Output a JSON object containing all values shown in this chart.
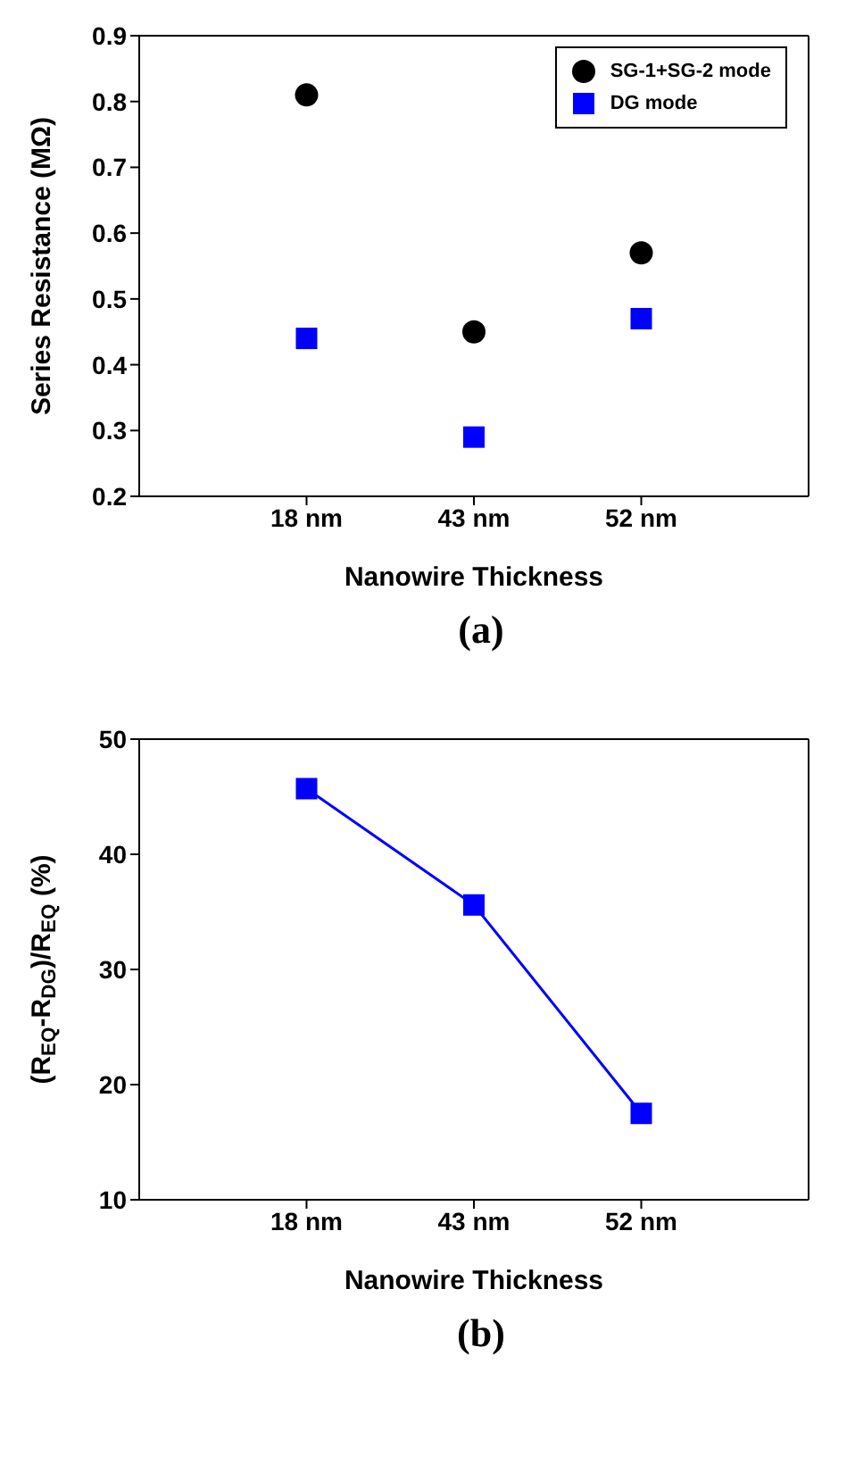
{
  "chart_data": [
    {
      "type": "scatter",
      "categories": [
        "18 nm",
        "43 nm",
        "52 nm"
      ],
      "xlabel": "Nanowire Thickness",
      "ylabel": "Series Resistance (MΩ)",
      "ylim": [
        0.2,
        0.9
      ],
      "yticks": [
        0.2,
        0.3,
        0.4,
        0.5,
        0.6,
        0.7,
        0.8,
        0.9
      ],
      "legend": "top right",
      "grid": false,
      "annotations": [
        "(a)"
      ],
      "series": [
        {
          "name": "SG-1+SG-2 mode",
          "color": "#000000",
          "marker": "circle",
          "values": [
            0.81,
            0.45,
            0.57
          ]
        },
        {
          "name": "DG mode",
          "color": "#0000ff",
          "marker": "square",
          "values": [
            0.44,
            0.29,
            0.47
          ]
        }
      ]
    },
    {
      "type": "line",
      "categories": [
        "18 nm",
        "43 nm",
        "52 nm"
      ],
      "xlabel": "Nanowire Thickness",
      "ylabel": "(R$_{EQ}$-R$_{DG}$)/R$_{EQ}$ (%)",
      "ylim": [
        10,
        50
      ],
      "yticks": [
        10,
        20,
        30,
        40,
        50
      ],
      "legend": false,
      "grid": false,
      "annotations": [
        "(b)"
      ],
      "series": [
        {
          "color": "#0000ff",
          "marker": "square",
          "values": [
            45.7,
            35.6,
            17.5
          ]
        }
      ]
    }
  ]
}
